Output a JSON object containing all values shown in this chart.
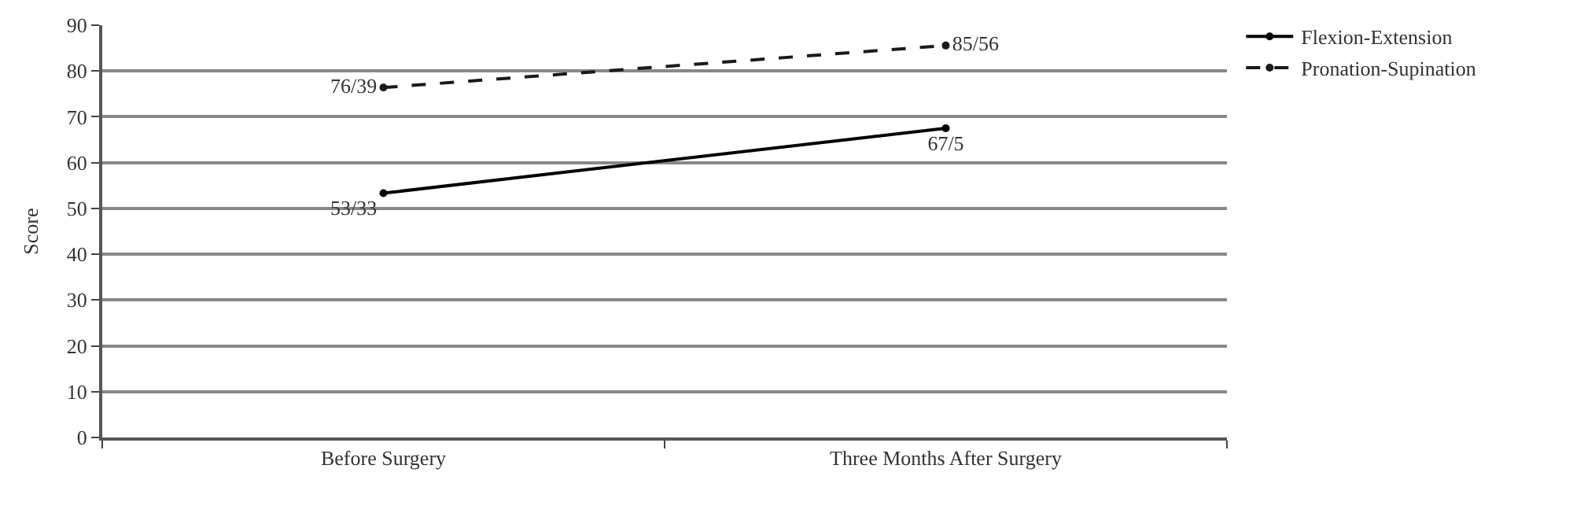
{
  "chart_data": {
    "type": "line",
    "ylabel": "Score",
    "categories": [
      "Before Surgery",
      "Three Months After Surgery"
    ],
    "series": [
      {
        "name": "Flexion-Extension",
        "color": "#000000",
        "line_style": "solid",
        "values": [
          53.33,
          67.5
        ],
        "value_labels": [
          "53/33",
          "67/5"
        ]
      },
      {
        "name": "Pronation-Supination",
        "color": "#1a1a1a",
        "line_style": "dashed",
        "values": [
          76.39,
          85.56
        ],
        "value_labels": [
          "76/39",
          "85/56"
        ]
      }
    ],
    "ylim": [
      0,
      90
    ],
    "yticks": [
      0,
      10,
      20,
      30,
      40,
      50,
      60,
      70,
      80,
      90
    ],
    "grid": "y",
    "legend": "top right",
    "marker": "circle"
  }
}
